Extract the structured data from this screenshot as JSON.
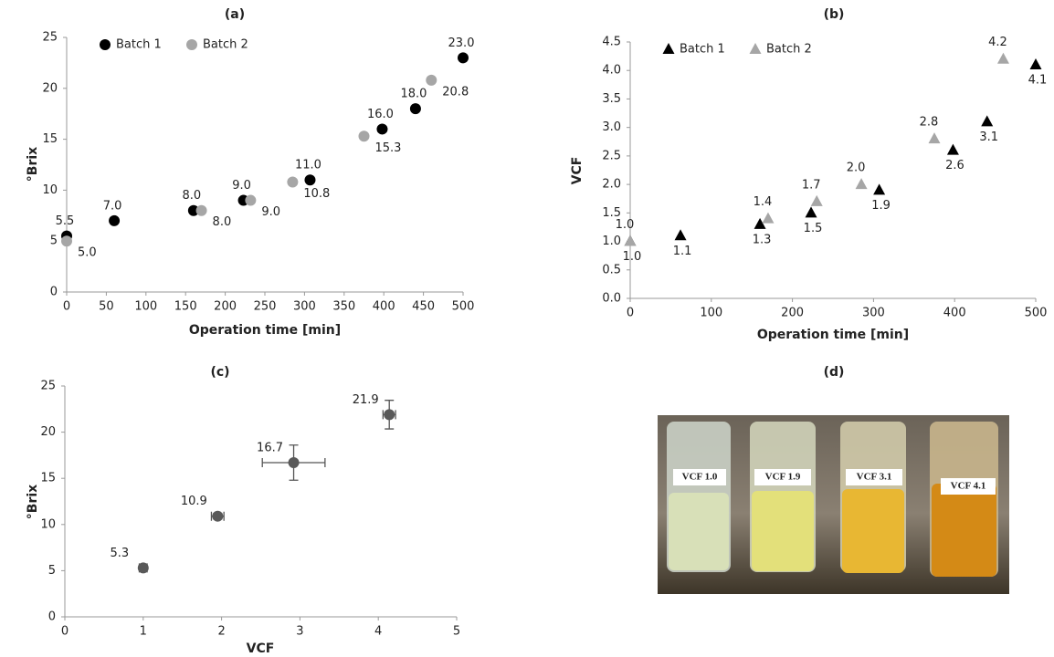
{
  "chart_data": [
    {
      "type": "scatter",
      "title": "(a)",
      "xlabel": "Operation time [min]",
      "ylabel": "°Brix",
      "xlim": [
        0,
        500
      ],
      "xticks": [
        0,
        50,
        100,
        150,
        200,
        250,
        300,
        350,
        400,
        450,
        500
      ],
      "ylim": [
        0,
        25
      ],
      "yticks": [
        0,
        5,
        10,
        15,
        20,
        25
      ],
      "grid": false,
      "legend": "top-left",
      "series": [
        {
          "name": "Batch 1",
          "color": "#000000",
          "marker": "circle",
          "x": [
            0,
            60,
            160,
            223,
            307,
            398,
            440,
            500
          ],
          "values": [
            5.5,
            7.0,
            8.0,
            9.0,
            11.0,
            16.0,
            18.0,
            23.0
          ],
          "value_labels": [
            "5.5",
            "7.0",
            "8.0",
            "9.0",
            "11.0",
            "16.0",
            "18.0",
            "23.0"
          ]
        },
        {
          "name": "Batch 2",
          "color": "#a6a6a6",
          "marker": "circle",
          "x": [
            0,
            170,
            232,
            285,
            375,
            460
          ],
          "values": [
            5.0,
            8.0,
            9.0,
            10.8,
            15.3,
            20.8
          ],
          "value_labels": [
            "5.0",
            "8.0",
            "9.0",
            "10.8",
            "15.3",
            "20.8"
          ]
        }
      ]
    },
    {
      "type": "scatter",
      "title": "(b)",
      "xlabel": "Operation time [min]",
      "ylabel": "VCF",
      "xlim": [
        0,
        500
      ],
      "xticks": [
        0,
        100,
        200,
        300,
        400,
        500
      ],
      "ylim": [
        0,
        4.5
      ],
      "yticks": [
        {
          "value": 0,
          "label": "0.0"
        },
        0.5,
        {
          "value": 1,
          "label": "1.0"
        },
        1.5,
        {
          "value": 2,
          "label": "2.0"
        },
        2.5,
        {
          "value": 3,
          "label": "3.0"
        },
        3.5,
        {
          "value": 4,
          "label": "4.0"
        },
        4.5
      ],
      "grid": false,
      "legend": "top-left",
      "series": [
        {
          "name": "Batch 1",
          "color": "#000000",
          "marker": "triangle",
          "x": [
            0,
            62,
            160,
            223,
            307,
            398,
            440,
            500
          ],
          "values": [
            1.0,
            1.1,
            1.3,
            1.5,
            1.9,
            2.6,
            3.1,
            4.1
          ],
          "value_labels": [
            "1.0",
            "1.1",
            "1.3",
            "1.5",
            "1.9",
            "2.6",
            "3.1",
            "4.1"
          ]
        },
        {
          "name": "Batch 2",
          "color": "#a6a6a6",
          "marker": "triangle",
          "x": [
            0,
            170,
            230,
            285,
            375,
            460
          ],
          "values": [
            1.0,
            1.4,
            1.7,
            2.0,
            2.8,
            4.2
          ],
          "value_labels": [
            "1.0",
            "1.4",
            "1.7",
            "2.0",
            "2.8",
            "4.2"
          ]
        }
      ]
    },
    {
      "type": "scatter",
      "title": "(c)",
      "xlabel": "VCF",
      "ylabel": "°Brix",
      "xlim": [
        0,
        5
      ],
      "xticks": [
        0,
        1,
        2,
        3,
        4,
        5
      ],
      "ylim": [
        0,
        25
      ],
      "yticks": [
        0,
        5,
        10,
        15,
        20,
        25
      ],
      "grid": false,
      "series": [
        {
          "color": "#595959",
          "marker": "circle",
          "x": [
            1.0,
            1.95,
            2.92,
            4.14
          ],
          "values": [
            5.3,
            10.9,
            16.7,
            21.9
          ],
          "xerr": [
            0.05,
            0.08,
            0.4,
            0.08
          ],
          "yerr": [
            0.2,
            0.3,
            1.9,
            1.55
          ],
          "value_labels": [
            "5.3",
            "10.9",
            "16.7",
            "21.9"
          ]
        }
      ]
    }
  ],
  "photo": {
    "title": "(d)",
    "labels": [
      "VCF 1.0",
      "VCF 1.9",
      "VCF 3.1",
      "VCF 4.1"
    ]
  }
}
